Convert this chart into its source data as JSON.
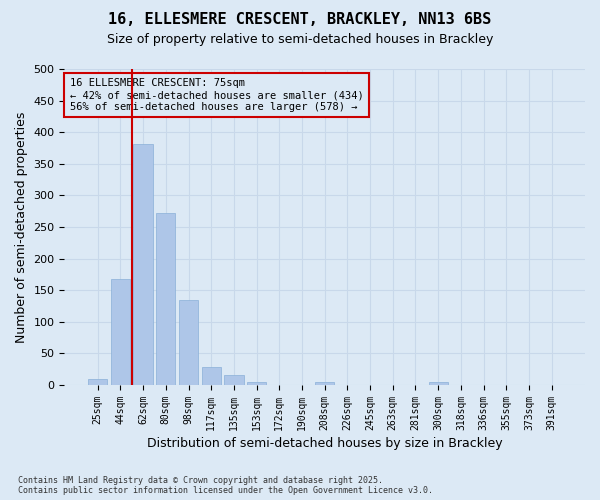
{
  "title_line1": "16, ELLESMERE CRESCENT, BRACKLEY, NN13 6BS",
  "title_line2": "Size of property relative to semi-detached houses in Brackley",
  "xlabel": "Distribution of semi-detached houses by size in Brackley",
  "ylabel": "Number of semi-detached properties",
  "categories": [
    "25sqm",
    "44sqm",
    "62sqm",
    "80sqm",
    "98sqm",
    "117sqm",
    "135sqm",
    "153sqm",
    "172sqm",
    "190sqm",
    "208sqm",
    "226sqm",
    "245sqm",
    "263sqm",
    "281sqm",
    "300sqm",
    "318sqm",
    "336sqm",
    "355sqm",
    "373sqm",
    "391sqm"
  ],
  "values": [
    10,
    168,
    381,
    272,
    135,
    28,
    16,
    5,
    0,
    0,
    5,
    0,
    0,
    0,
    0,
    5,
    0,
    0,
    0,
    0,
    0
  ],
  "bar_color": "#aec6e8",
  "bar_edge_color": "#8ab0d8",
  "grid_color": "#c8d8ea",
  "background_color": "#dce9f5",
  "vline_color": "#cc0000",
  "vline_x": 1.5,
  "annotation_title": "16 ELLESMERE CRESCENT: 75sqm",
  "annotation_line2": "← 42% of semi-detached houses are smaller (434)",
  "annotation_line3": "56% of semi-detached houses are larger (578) →",
  "annotation_box_color": "#cc0000",
  "ylim": [
    0,
    500
  ],
  "yticks": [
    0,
    50,
    100,
    150,
    200,
    250,
    300,
    350,
    400,
    450,
    500
  ],
  "footnote": "Contains HM Land Registry data © Crown copyright and database right 2025.\nContains public sector information licensed under the Open Government Licence v3.0."
}
